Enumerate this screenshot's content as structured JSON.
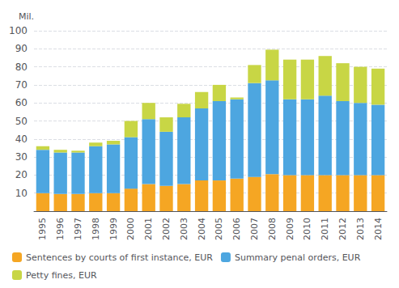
{
  "chart_data": {
    "type": "bar",
    "y_label": "Mil.",
    "categories": [
      "1995",
      "1996",
      "1997",
      "1998",
      "1999",
      "2000",
      "2001",
      "2002",
      "2003",
      "2004",
      "2005",
      "2006",
      "2007",
      "2008",
      "2009",
      "2010",
      "2011",
      "2012",
      "2013",
      "2014"
    ],
    "series": [
      {
        "name": "Sentences by courts of first instance, EUR",
        "color": "#f5a623",
        "values": [
          10,
          9.5,
          9.5,
          10,
          10,
          12.5,
          15,
          14,
          15,
          17,
          17,
          18,
          19,
          20.5,
          20,
          20,
          20,
          20,
          20,
          20
        ]
      },
      {
        "name": "Summary penal orders, EUR",
        "color": "#4da6e0",
        "values": [
          24,
          23,
          23,
          26,
          27,
          28.5,
          36,
          30,
          37,
          40,
          44,
          44,
          52,
          52,
          42,
          42,
          44,
          41,
          40,
          39
        ]
      },
      {
        "name": "Petty fines, EUR",
        "color": "#c8d645",
        "values": [
          2,
          1.5,
          1,
          2,
          2,
          9,
          9,
          8,
          7.5,
          9,
          9,
          1,
          10,
          17,
          22,
          22,
          22,
          21,
          20,
          20
        ]
      }
    ],
    "stacked": true,
    "ylim": [
      0,
      100
    ],
    "yticks": [
      {
        "value": 0,
        "label": null
      },
      10,
      20,
      30,
      40,
      50,
      60,
      70,
      80,
      90,
      100
    ],
    "grid": true,
    "legend": "bottom"
  }
}
